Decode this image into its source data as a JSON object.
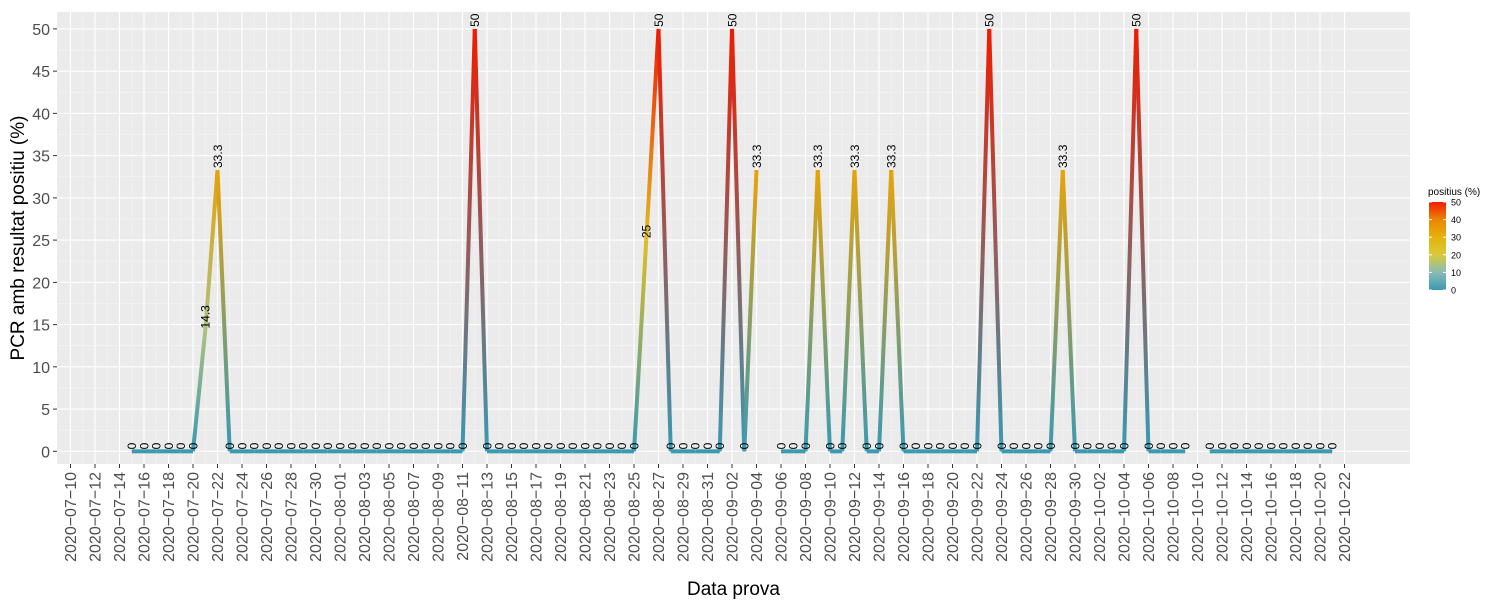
{
  "chart_data": {
    "type": "line",
    "xlabel": "Data prova",
    "ylabel": "PCR amb resultat positiu (%)",
    "x_tick_labels": [
      "2020-07-10",
      "2020-07-12",
      "2020-07-14",
      "2020-07-16",
      "2020-07-18",
      "2020-07-20",
      "2020-07-22",
      "2020-07-24",
      "2020-07-26",
      "2020-07-28",
      "2020-07-30",
      "2020-08-01",
      "2020-08-03",
      "2020-08-05",
      "2020-08-07",
      "2020-08-09",
      "2020-08-11",
      "2020-08-13",
      "2020-08-15",
      "2020-08-17",
      "2020-08-19",
      "2020-08-21",
      "2020-08-23",
      "2020-08-25",
      "2020-08-27",
      "2020-08-29",
      "2020-08-31",
      "2020-09-02",
      "2020-09-04",
      "2020-09-06",
      "2020-09-08",
      "2020-09-10",
      "2020-09-12",
      "2020-09-14",
      "2020-09-16",
      "2020-09-18",
      "2020-09-20",
      "2020-09-22",
      "2020-09-24",
      "2020-09-26",
      "2020-09-28",
      "2020-09-30",
      "2020-10-02",
      "2020-10-04",
      "2020-10-06",
      "2020-10-08",
      "2020-10-10",
      "2020-10-12",
      "2020-10-14",
      "2020-10-16",
      "2020-10-18",
      "2020-10-20",
      "2020-10-22"
    ],
    "y_ticks": [
      0,
      5,
      10,
      15,
      20,
      25,
      30,
      35,
      40,
      45,
      50
    ],
    "ylim": [
      -1.5,
      52
    ],
    "grid": true,
    "legend": {
      "title": "positius (%)",
      "position": "right",
      "ticks": [
        0,
        10,
        20,
        30,
        40,
        50
      ],
      "colors": [
        "#3a9ab2",
        "#8abbb5",
        "#d9c93a",
        "#e4b30a",
        "#ec8404",
        "#f11b00"
      ]
    },
    "segments": [
      {
        "points": [
          {
            "x": "2020-07-15",
            "y": 0
          },
          {
            "x": "2020-07-16",
            "y": 0
          },
          {
            "x": "2020-07-17",
            "y": 0
          },
          {
            "x": "2020-07-18",
            "y": 0
          },
          {
            "x": "2020-07-19",
            "y": 0
          },
          {
            "x": "2020-07-20",
            "y": 0
          },
          {
            "x": "2020-07-21",
            "y": 14.3
          },
          {
            "x": "2020-07-22",
            "y": 33.3
          },
          {
            "x": "2020-07-23",
            "y": 0
          },
          {
            "x": "2020-07-24",
            "y": 0
          },
          {
            "x": "2020-07-25",
            "y": 0
          },
          {
            "x": "2020-07-26",
            "y": 0
          },
          {
            "x": "2020-07-27",
            "y": 0
          },
          {
            "x": "2020-07-28",
            "y": 0
          },
          {
            "x": "2020-07-29",
            "y": 0
          },
          {
            "x": "2020-07-30",
            "y": 0
          },
          {
            "x": "2020-07-31",
            "y": 0
          },
          {
            "x": "2020-08-01",
            "y": 0
          },
          {
            "x": "2020-08-02",
            "y": 0
          },
          {
            "x": "2020-08-03",
            "y": 0
          },
          {
            "x": "2020-08-04",
            "y": 0
          },
          {
            "x": "2020-08-05",
            "y": 0
          },
          {
            "x": "2020-08-06",
            "y": 0
          },
          {
            "x": "2020-08-07",
            "y": 0
          },
          {
            "x": "2020-08-08",
            "y": 0
          },
          {
            "x": "2020-08-09",
            "y": 0
          },
          {
            "x": "2020-08-10",
            "y": 0
          },
          {
            "x": "2020-08-11",
            "y": 0
          },
          {
            "x": "2020-08-12",
            "y": 50
          },
          {
            "x": "2020-08-13",
            "y": 0
          },
          {
            "x": "2020-08-14",
            "y": 0
          },
          {
            "x": "2020-08-15",
            "y": 0
          },
          {
            "x": "2020-08-16",
            "y": 0
          },
          {
            "x": "2020-08-17",
            "y": 0
          },
          {
            "x": "2020-08-18",
            "y": 0
          },
          {
            "x": "2020-08-19",
            "y": 0
          },
          {
            "x": "2020-08-20",
            "y": 0
          },
          {
            "x": "2020-08-21",
            "y": 0
          },
          {
            "x": "2020-08-22",
            "y": 0
          },
          {
            "x": "2020-08-23",
            "y": 0
          },
          {
            "x": "2020-08-24",
            "y": 0
          },
          {
            "x": "2020-08-25",
            "y": 0
          },
          {
            "x": "2020-08-26",
            "y": 25
          },
          {
            "x": "2020-08-27",
            "y": 50
          },
          {
            "x": "2020-08-28",
            "y": 0
          },
          {
            "x": "2020-08-29",
            "y": 0
          },
          {
            "x": "2020-08-30",
            "y": 0
          },
          {
            "x": "2020-08-31",
            "y": 0
          },
          {
            "x": "2020-09-01",
            "y": 0
          },
          {
            "x": "2020-09-02",
            "y": 50
          },
          {
            "x": "2020-09-03",
            "y": 0
          },
          {
            "x": "2020-09-04",
            "y": 33.3
          }
        ]
      },
      {
        "points": [
          {
            "x": "2020-09-06",
            "y": 0
          },
          {
            "x": "2020-09-07",
            "y": 0
          },
          {
            "x": "2020-09-08",
            "y": 0
          },
          {
            "x": "2020-09-09",
            "y": 33.3
          },
          {
            "x": "2020-09-10",
            "y": 0
          },
          {
            "x": "2020-09-11",
            "y": 0
          },
          {
            "x": "2020-09-12",
            "y": 33.3
          },
          {
            "x": "2020-09-13",
            "y": 0
          },
          {
            "x": "2020-09-14",
            "y": 0
          },
          {
            "x": "2020-09-15",
            "y": 33.3
          },
          {
            "x": "2020-09-16",
            "y": 0
          },
          {
            "x": "2020-09-17",
            "y": 0
          },
          {
            "x": "2020-09-18",
            "y": 0
          },
          {
            "x": "2020-09-19",
            "y": 0
          },
          {
            "x": "2020-09-20",
            "y": 0
          },
          {
            "x": "2020-09-21",
            "y": 0
          },
          {
            "x": "2020-09-22",
            "y": 0
          },
          {
            "x": "2020-09-23",
            "y": 50
          },
          {
            "x": "2020-09-24",
            "y": 0
          },
          {
            "x": "2020-09-25",
            "y": 0
          },
          {
            "x": "2020-09-26",
            "y": 0
          },
          {
            "x": "2020-09-27",
            "y": 0
          },
          {
            "x": "2020-09-28",
            "y": 0
          },
          {
            "x": "2020-09-29",
            "y": 33.3
          },
          {
            "x": "2020-09-30",
            "y": 0
          },
          {
            "x": "2020-10-01",
            "y": 0
          },
          {
            "x": "2020-10-02",
            "y": 0
          },
          {
            "x": "2020-10-03",
            "y": 0
          },
          {
            "x": "2020-10-04",
            "y": 0
          },
          {
            "x": "2020-10-05",
            "y": 50
          },
          {
            "x": "2020-10-06",
            "y": 0
          },
          {
            "x": "2020-10-07",
            "y": 0
          },
          {
            "x": "2020-10-08",
            "y": 0
          },
          {
            "x": "2020-10-09",
            "y": 0
          }
        ]
      },
      {
        "points": [
          {
            "x": "2020-10-11",
            "y": 0
          },
          {
            "x": "2020-10-12",
            "y": 0
          },
          {
            "x": "2020-10-13",
            "y": 0
          },
          {
            "x": "2020-10-14",
            "y": 0
          },
          {
            "x": "2020-10-15",
            "y": 0
          },
          {
            "x": "2020-10-16",
            "y": 0
          },
          {
            "x": "2020-10-17",
            "y": 0
          },
          {
            "x": "2020-10-18",
            "y": 0
          },
          {
            "x": "2020-10-19",
            "y": 0
          },
          {
            "x": "2020-10-20",
            "y": 0
          },
          {
            "x": "2020-10-21",
            "y": 0
          }
        ]
      }
    ]
  }
}
